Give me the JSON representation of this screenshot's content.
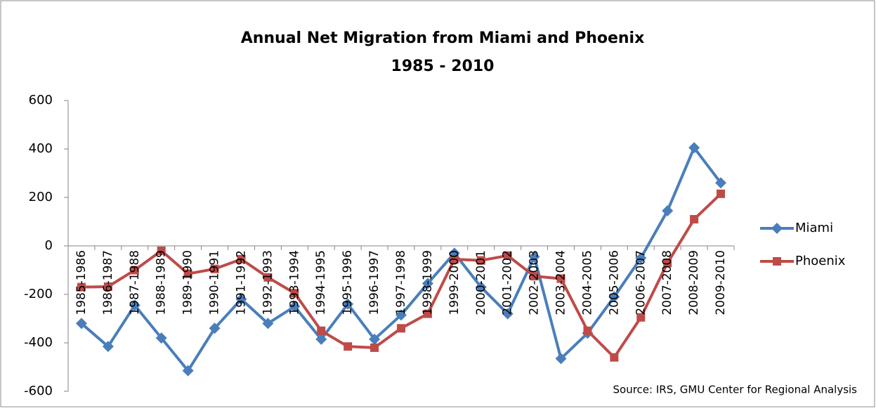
{
  "chart_data": {
    "type": "line",
    "title": "Annual Net Migration from Miami and Phoenix",
    "subtitle": "1985 - 2010",
    "source": "Source: IRS, GMU Center for Regional Analysis",
    "categories": [
      "1985-1986",
      "1986-1987",
      "1987-1988",
      "1988-1989",
      "1989-1990",
      "1990-1991",
      "1991-1992",
      "1992-1993",
      "1993-1994",
      "1994-1995",
      "1995-1996",
      "1996-1997",
      "1997-1998",
      "1998-1999",
      "1999-2000",
      "2000-2001",
      "2001-2002",
      "2002-2003",
      "2003-2004",
      "2004-2005",
      "2005-2006",
      "2006-2007",
      "2007-2008",
      "2008-2009",
      "2009-2010"
    ],
    "series": [
      {
        "name": "Miami",
        "color": "#4a7ebb",
        "marker": "diamond",
        "values": [
          -320,
          -415,
          -245,
          -380,
          -515,
          -340,
          -220,
          -320,
          -250,
          -385,
          -240,
          -385,
          -285,
          -155,
          -30,
          -170,
          -280,
          -45,
          -465,
          -360,
          -210,
          -50,
          145,
          405,
          260
        ]
      },
      {
        "name": "Phoenix",
        "color": "#be4b48",
        "marker": "square",
        "values": [
          -170,
          -168,
          -100,
          -20,
          -115,
          -95,
          -55,
          -130,
          -195,
          -350,
          -415,
          -420,
          -340,
          -280,
          -55,
          -60,
          -40,
          -125,
          -135,
          -350,
          -460,
          -295,
          -70,
          110,
          215
        ]
      }
    ],
    "ylim": [
      -600,
      600
    ],
    "yticks": [
      -600,
      -400,
      -200,
      0,
      200,
      400,
      600
    ],
    "legend": "right"
  }
}
